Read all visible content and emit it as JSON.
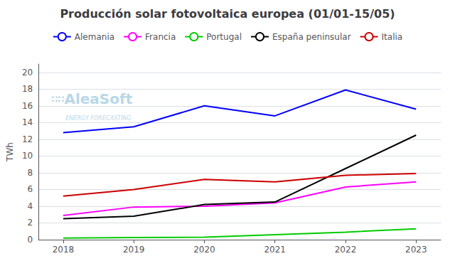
{
  "chart_data": {
    "type": "line",
    "title": "Producción solar fotovoltaica europea (01/01-15/05)",
    "x": [
      2018,
      2019,
      2020,
      2021,
      2022,
      2023
    ],
    "series": [
      {
        "name": "Alemania",
        "color": "#0000ff",
        "values": [
          12.8,
          13.5,
          16.0,
          14.8,
          17.9,
          15.6
        ]
      },
      {
        "name": "Francia",
        "color": "#ff00ff",
        "values": [
          2.9,
          3.9,
          4.0,
          4.4,
          6.3,
          6.9
        ]
      },
      {
        "name": "Portugal",
        "color": "#00cc00",
        "values": [
          0.2,
          0.25,
          0.3,
          0.6,
          0.9,
          1.3
        ]
      },
      {
        "name": "España peninsular",
        "color": "#000000",
        "values": [
          2.5,
          2.8,
          4.2,
          4.5,
          8.5,
          12.5
        ]
      },
      {
        "name": "Italia",
        "color": "#cc0000",
        "values": [
          5.2,
          6.0,
          7.2,
          6.9,
          7.7,
          7.9
        ]
      }
    ],
    "ylabel": "TWh",
    "xlim": [
      2017.65,
      2023.35
    ],
    "xticks": [
      2018,
      2019,
      2020,
      2021,
      2022,
      2023
    ],
    "ylim": [
      0,
      21
    ],
    "yticks": [
      0,
      2,
      4,
      6,
      8,
      10,
      12,
      14,
      16,
      18,
      20
    ],
    "grid": true,
    "legend": "top",
    "annotations": [
      {
        "text": "∷∷",
        "color": "#b8d8e8"
      },
      {
        "text": "AleaSoft",
        "color": "#b8d8e8"
      },
      {
        "text": "ENERGY FORECASTING",
        "color": "#b8d8e8"
      }
    ]
  }
}
